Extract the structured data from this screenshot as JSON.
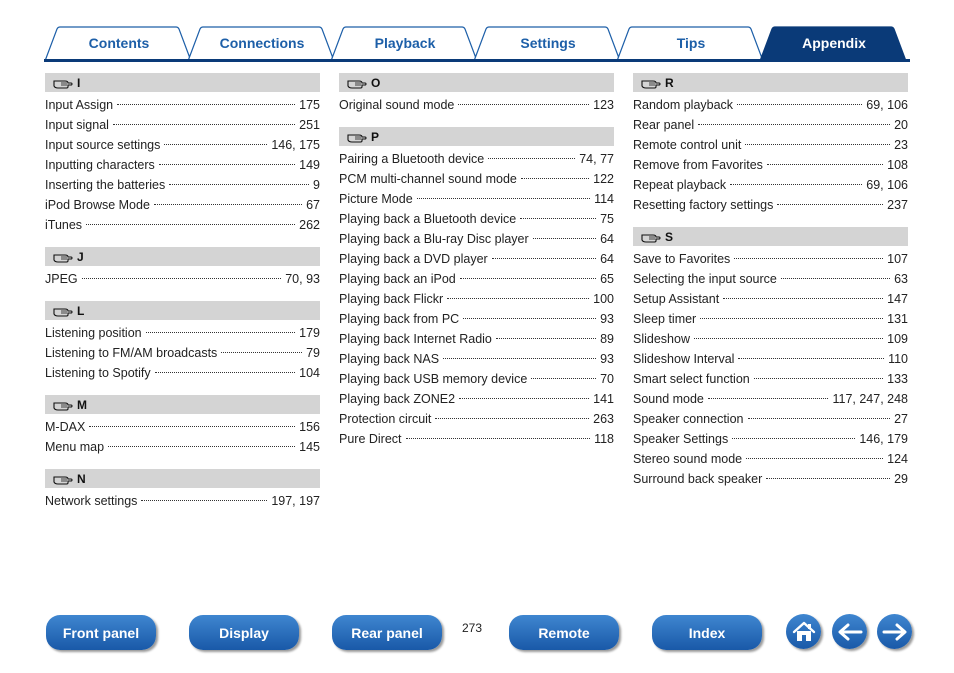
{
  "tabs": [
    {
      "label": "Contents"
    },
    {
      "label": "Connections"
    },
    {
      "label": "Playback"
    },
    {
      "label": "Settings"
    },
    {
      "label": "Tips"
    },
    {
      "label": "Appendix"
    }
  ],
  "columns": [
    {
      "sections": [
        {
          "letter": "I",
          "entries": [
            {
              "term": "Input Assign",
              "page": "175"
            },
            {
              "term": "Input signal",
              "page": "251"
            },
            {
              "term": "Input source settings",
              "page": "146, 175"
            },
            {
              "term": "Inputting characters",
              "page": "149"
            },
            {
              "term": "Inserting the batteries",
              "page": "9"
            },
            {
              "term": "iPod Browse Mode",
              "page": "67"
            },
            {
              "term": "iTunes",
              "page": "262"
            }
          ]
        },
        {
          "letter": "J",
          "entries": [
            {
              "term": "JPEG",
              "page": "70, 93"
            }
          ]
        },
        {
          "letter": "L",
          "entries": [
            {
              "term": "Listening position",
              "page": "179"
            },
            {
              "term": "Listening to FM/AM broadcasts",
              "page": "79"
            },
            {
              "term": "Listening to Spotify",
              "page": "104"
            }
          ]
        },
        {
          "letter": "M",
          "entries": [
            {
              "term": "M-DAX",
              "page": "156"
            },
            {
              "term": "Menu map",
              "page": "145"
            }
          ]
        },
        {
          "letter": "N",
          "entries": [
            {
              "term": "Network settings",
              "page": "197, 197"
            }
          ]
        }
      ]
    },
    {
      "sections": [
        {
          "letter": "O",
          "entries": [
            {
              "term": "Original sound mode",
              "page": "123"
            }
          ]
        },
        {
          "letter": "P",
          "entries": [
            {
              "term": "Pairing a Bluetooth device",
              "page": "74, 77"
            },
            {
              "term": "PCM multi-channel sound mode",
              "page": "122"
            },
            {
              "term": "Picture Mode",
              "page": "114"
            },
            {
              "term": "Playing back a Bluetooth device",
              "page": "75"
            },
            {
              "term": "Playing back a Blu-ray Disc player",
              "page": "64"
            },
            {
              "term": "Playing back a DVD player",
              "page": "64"
            },
            {
              "term": "Playing back an iPod",
              "page": "65"
            },
            {
              "term": "Playing back Flickr",
              "page": "100"
            },
            {
              "term": "Playing back from PC",
              "page": "93"
            },
            {
              "term": "Playing back Internet Radio",
              "page": "89"
            },
            {
              "term": "Playing back NAS",
              "page": "93"
            },
            {
              "term": "Playing back USB memory device",
              "page": "70"
            },
            {
              "term": "Playing back ZONE2",
              "page": "141"
            },
            {
              "term": "Protection circuit",
              "page": "263"
            },
            {
              "term": "Pure Direct",
              "page": "118"
            }
          ]
        }
      ]
    },
    {
      "sections": [
        {
          "letter": "R",
          "entries": [
            {
              "term": "Random playback",
              "page": "69, 106"
            },
            {
              "term": "Rear panel",
              "page": "20"
            },
            {
              "term": "Remote control unit",
              "page": "23"
            },
            {
              "term": "Remove from Favorites",
              "page": "108"
            },
            {
              "term": "Repeat playback",
              "page": "69, 106"
            },
            {
              "term": "Resetting factory settings",
              "page": "237"
            }
          ]
        },
        {
          "letter": "S",
          "entries": [
            {
              "term": "Save to Favorites",
              "page": "107"
            },
            {
              "term": "Selecting the input source",
              "page": "63"
            },
            {
              "term": "Setup Assistant",
              "page": "147"
            },
            {
              "term": "Sleep timer",
              "page": "131"
            },
            {
              "term": "Slideshow",
              "page": "109"
            },
            {
              "term": "Slideshow Interval",
              "page": "110"
            },
            {
              "term": "Smart select function",
              "page": "133"
            },
            {
              "term": "Sound mode",
              "page": "117, 247, 248"
            },
            {
              "term": "Speaker connection",
              "page": "27"
            },
            {
              "term": "Speaker Settings",
              "page": "146, 179"
            },
            {
              "term": "Stereo sound mode",
              "page": "124"
            },
            {
              "term": "Surround back speaker",
              "page": "29"
            }
          ]
        }
      ]
    }
  ],
  "bottom_nav": [
    {
      "label": "Front panel"
    },
    {
      "label": "Display"
    },
    {
      "label": "Rear panel"
    },
    {
      "label": "Remote"
    },
    {
      "label": "Index"
    }
  ],
  "page_number": "273",
  "icons": {
    "section": "pointing-hand-icon",
    "home": "home-icon",
    "back": "arrow-left-icon",
    "forward": "arrow-right-icon"
  },
  "colors": {
    "tab_text": "#1d5fa8",
    "tab_active": "#0a3a78",
    "button": "#2a6dbd",
    "section_header": "#d4d4d4"
  }
}
